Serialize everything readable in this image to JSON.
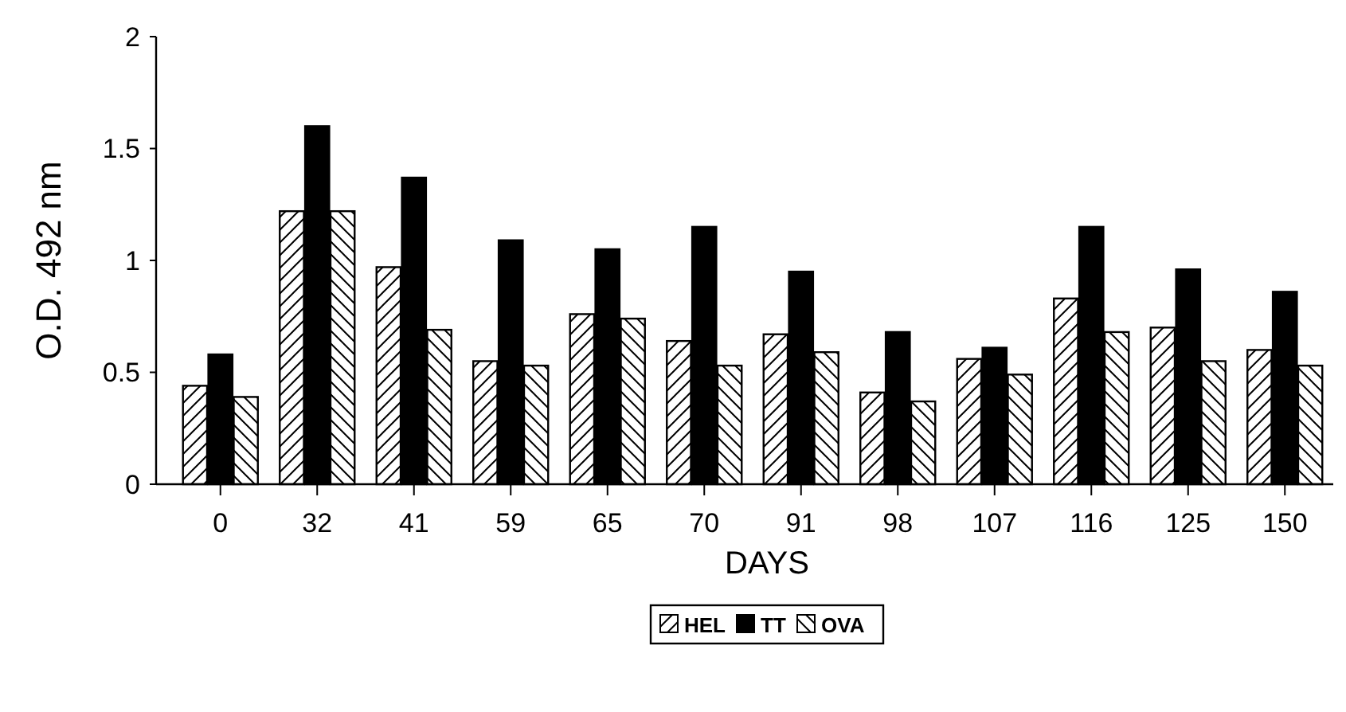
{
  "chart_data": {
    "type": "bar",
    "xlabel": "DAYS",
    "ylabel": "O.D. 492 nm",
    "categories": [
      "0",
      "32",
      "41",
      "59",
      "65",
      "70",
      "91",
      "98",
      "107",
      "116",
      "125",
      "150"
    ],
    "series": [
      {
        "name": "HEL",
        "color": "#000000",
        "values": [
          0.44,
          1.22,
          0.97,
          0.55,
          0.76,
          0.64,
          0.67,
          0.41,
          0.56,
          0.83,
          0.7,
          0.6
        ]
      },
      {
        "name": "TT",
        "color": "#000000",
        "values": [
          0.58,
          1.6,
          1.37,
          1.09,
          1.05,
          1.15,
          0.95,
          0.68,
          0.61,
          1.15,
          0.96,
          0.86
        ]
      },
      {
        "name": "OVA",
        "color": "#000000",
        "values": [
          0.39,
          1.22,
          0.69,
          0.53,
          0.74,
          0.53,
          0.59,
          0.37,
          0.49,
          0.68,
          0.55,
          0.53
        ]
      }
    ],
    "ylim": [
      0,
      2
    ],
    "yticks": [
      0,
      0.5,
      1,
      1.5,
      2
    ],
    "grid": false,
    "legend": "bottom"
  }
}
